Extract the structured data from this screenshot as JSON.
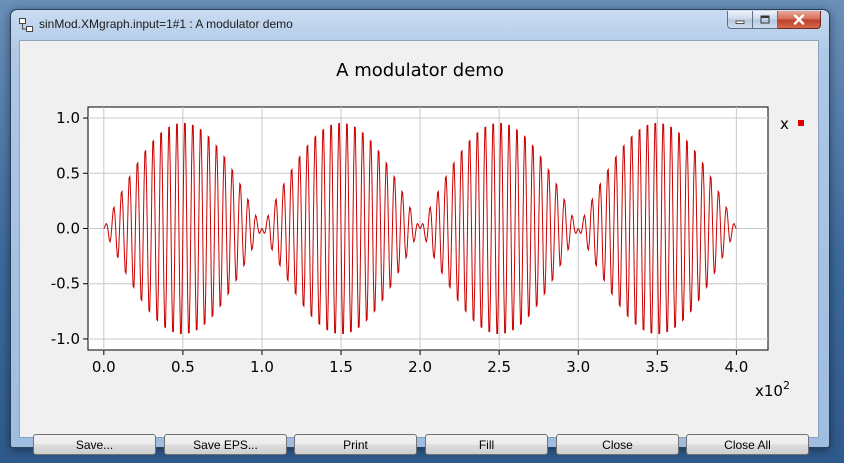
{
  "window": {
    "title": "sinMod.XMgraph.input=1#1 : A modulator demo",
    "icons": {
      "app": "app-icon",
      "minimize": "minimize-icon",
      "maximize": "maximize-icon",
      "close": "close-icon"
    }
  },
  "chart_data": {
    "type": "line",
    "title": "A modulator demo",
    "xlabel": "",
    "ylabel": "",
    "x_scale_note": "x10",
    "x_scale_exponent": "2",
    "xlim": [
      -0.1,
      4.2
    ],
    "ylim": [
      -1.1,
      1.1
    ],
    "x_ticks": [
      0.0,
      0.5,
      1.0,
      1.5,
      2.0,
      2.5,
      3.0,
      3.5,
      4.0
    ],
    "x_tick_labels": [
      "0.0",
      "0.5",
      "1.0",
      "1.5",
      "2.0",
      "2.5",
      "3.0",
      "3.5",
      "4.0"
    ],
    "y_ticks": [
      -1.0,
      -0.5,
      0.0,
      0.5,
      1.0
    ],
    "y_tick_labels": [
      "-1.0",
      "-0.5",
      "0.0",
      "0.5",
      "1.0"
    ],
    "grid": true,
    "legend_position": "top-right",
    "series": [
      {
        "name": "x",
        "color": "#cc0000",
        "carrier_period": 0.05,
        "envelope_period": 1.0,
        "x_start": 0.0,
        "x_end": 4.0,
        "sample_step": 0.005
      }
    ]
  },
  "buttons": {
    "save": "Save...",
    "save_eps": "Save EPS...",
    "print": "Print",
    "fill": "Fill",
    "close": "Close",
    "close_all": "Close All"
  }
}
